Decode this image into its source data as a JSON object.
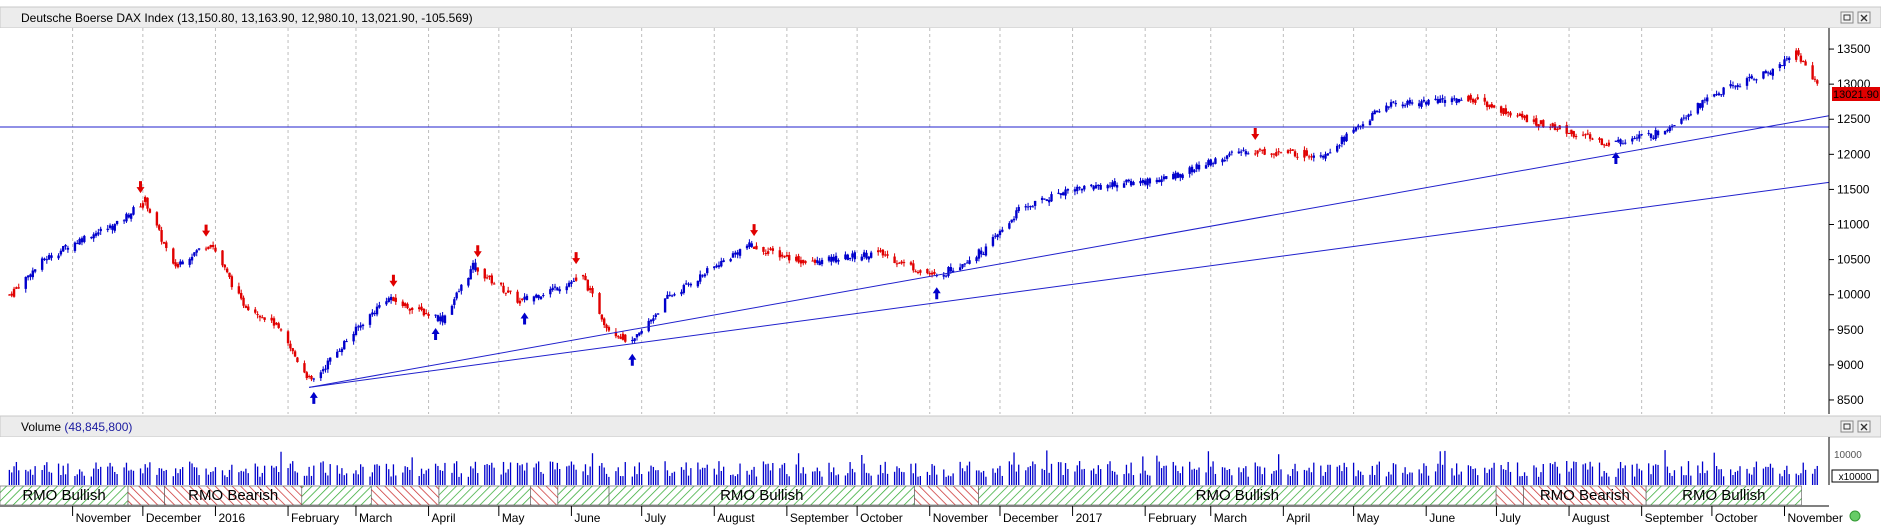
{
  "price_panel": {
    "title": "Deutsche Boerse DAX Index",
    "ohlc_text": "(13,150.80, 13,163.90, 12,980.10, 13,021.90, -105.569)",
    "current_value_label": "13021.90",
    "y_ticks": [
      "13500",
      "13000",
      "12500",
      "12000",
      "11500",
      "11000",
      "10500",
      "10000",
      "9500",
      "9000",
      "8500"
    ]
  },
  "volume_panel": {
    "title": "Volume",
    "value_text": "(48,845,800)",
    "y_tick": "10000",
    "scale_label": "x10000"
  },
  "rmo_bands": [
    {
      "label": "RMO Bullish",
      "state": "bullish",
      "start": 0.0,
      "end": 0.07
    },
    {
      "label": "",
      "state": "bearish",
      "start": 0.07,
      "end": 0.09
    },
    {
      "label": "RMO Bearish",
      "state": "bearish",
      "start": 0.09,
      "end": 0.165
    },
    {
      "label": "",
      "state": "bullish",
      "start": 0.165,
      "end": 0.203
    },
    {
      "label": "",
      "state": "bearish",
      "start": 0.203,
      "end": 0.24
    },
    {
      "label": "",
      "state": "bullish",
      "start": 0.24,
      "end": 0.29
    },
    {
      "label": "",
      "state": "bearish",
      "start": 0.29,
      "end": 0.305
    },
    {
      "label": "",
      "state": "bullish",
      "start": 0.305,
      "end": 0.333
    },
    {
      "label": "RMO Bullish",
      "state": "bullish",
      "start": 0.333,
      "end": 0.5
    },
    {
      "label": "",
      "state": "bearish",
      "start": 0.5,
      "end": 0.535
    },
    {
      "label": "RMO Bullish",
      "state": "bullish",
      "start": 0.535,
      "end": 0.818
    },
    {
      "label": "",
      "state": "bearish",
      "start": 0.818,
      "end": 0.833
    },
    {
      "label": "RMO Bearish",
      "state": "bearish",
      "start": 0.833,
      "end": 0.9
    },
    {
      "label": "RMO Bullish",
      "state": "bullish",
      "start": 0.9,
      "end": 0.985
    }
  ],
  "months": [
    "November",
    "December",
    "2016",
    "February",
    "March",
    "April",
    "May",
    "June",
    "July",
    "August",
    "September",
    "October",
    "November",
    "December",
    "2017",
    "February",
    "March",
    "April",
    "May",
    "June",
    "July",
    "August",
    "September",
    "October",
    "November"
  ],
  "colors": {
    "up": "#0000cc",
    "down": "#e00000",
    "trendline": "#2020cc",
    "panel_header": "#e9e9e9",
    "bull_hatch": "#33aa33",
    "bear_hatch": "#cc3333"
  },
  "chart_data": {
    "type": "candlestick",
    "title": "Deutsche Boerse DAX Index",
    "ylim": [
      8300,
      13800
    ],
    "x_range": [
      "2015-10",
      "2017-11"
    ],
    "grid": true,
    "trendlines": [
      {
        "from": [
          "2016-02-10",
          8680
        ],
        "to": [
          "2017-11-20",
          12550
        ]
      },
      {
        "from": [
          "2016-02-10",
          8680
        ],
        "to": [
          "2017-11-20",
          11600
        ]
      }
    ],
    "horizontal_line": 12390,
    "series": [
      {
        "x": "2015-10-05",
        "close": 10000
      },
      {
        "x": "2015-10-20",
        "close": 10500
      },
      {
        "x": "2015-11-05",
        "close": 10800
      },
      {
        "x": "2015-11-20",
        "close": 11000
      },
      {
        "x": "2015-12-02",
        "close": 11350
      },
      {
        "x": "2015-12-14",
        "close": 10400
      },
      {
        "x": "2015-12-30",
        "close": 10750
      },
      {
        "x": "2016-01-12",
        "close": 9900
      },
      {
        "x": "2016-01-26",
        "close": 9600
      },
      {
        "x": "2016-02-11",
        "close": 8750
      },
      {
        "x": "2016-02-26",
        "close": 9350
      },
      {
        "x": "2016-03-14",
        "close": 9950
      },
      {
        "x": "2016-04-07",
        "close": 9650
      },
      {
        "x": "2016-04-20",
        "close": 10400
      },
      {
        "x": "2016-05-10",
        "close": 9900
      },
      {
        "x": "2016-06-06",
        "close": 10250
      },
      {
        "x": "2016-06-16",
        "close": 9550
      },
      {
        "x": "2016-06-27",
        "close": 9300
      },
      {
        "x": "2016-07-12",
        "close": 9950
      },
      {
        "x": "2016-08-15",
        "close": 10700
      },
      {
        "x": "2016-09-12",
        "close": 10450
      },
      {
        "x": "2016-10-10",
        "close": 10600
      },
      {
        "x": "2016-11-04",
        "close": 10250
      },
      {
        "x": "2016-11-25",
        "close": 10650
      },
      {
        "x": "2016-12-09",
        "close": 11200
      },
      {
        "x": "2016-12-30",
        "close": 11500
      },
      {
        "x": "2017-02-10",
        "close": 11650
      },
      {
        "x": "2017-03-15",
        "close": 12050
      },
      {
        "x": "2017-04-18",
        "close": 12000
      },
      {
        "x": "2017-05-15",
        "close": 12700
      },
      {
        "x": "2017-06-20",
        "close": 12800
      },
      {
        "x": "2017-07-14",
        "close": 12500
      },
      {
        "x": "2017-08-18",
        "close": 12150
      },
      {
        "x": "2017-09-08",
        "close": 12300
      },
      {
        "x": "2017-10-02",
        "close": 12850
      },
      {
        "x": "2017-10-27",
        "close": 13200
      },
      {
        "x": "2017-11-06",
        "close": 13450
      },
      {
        "x": "2017-11-15",
        "close": 13021.9
      }
    ]
  }
}
